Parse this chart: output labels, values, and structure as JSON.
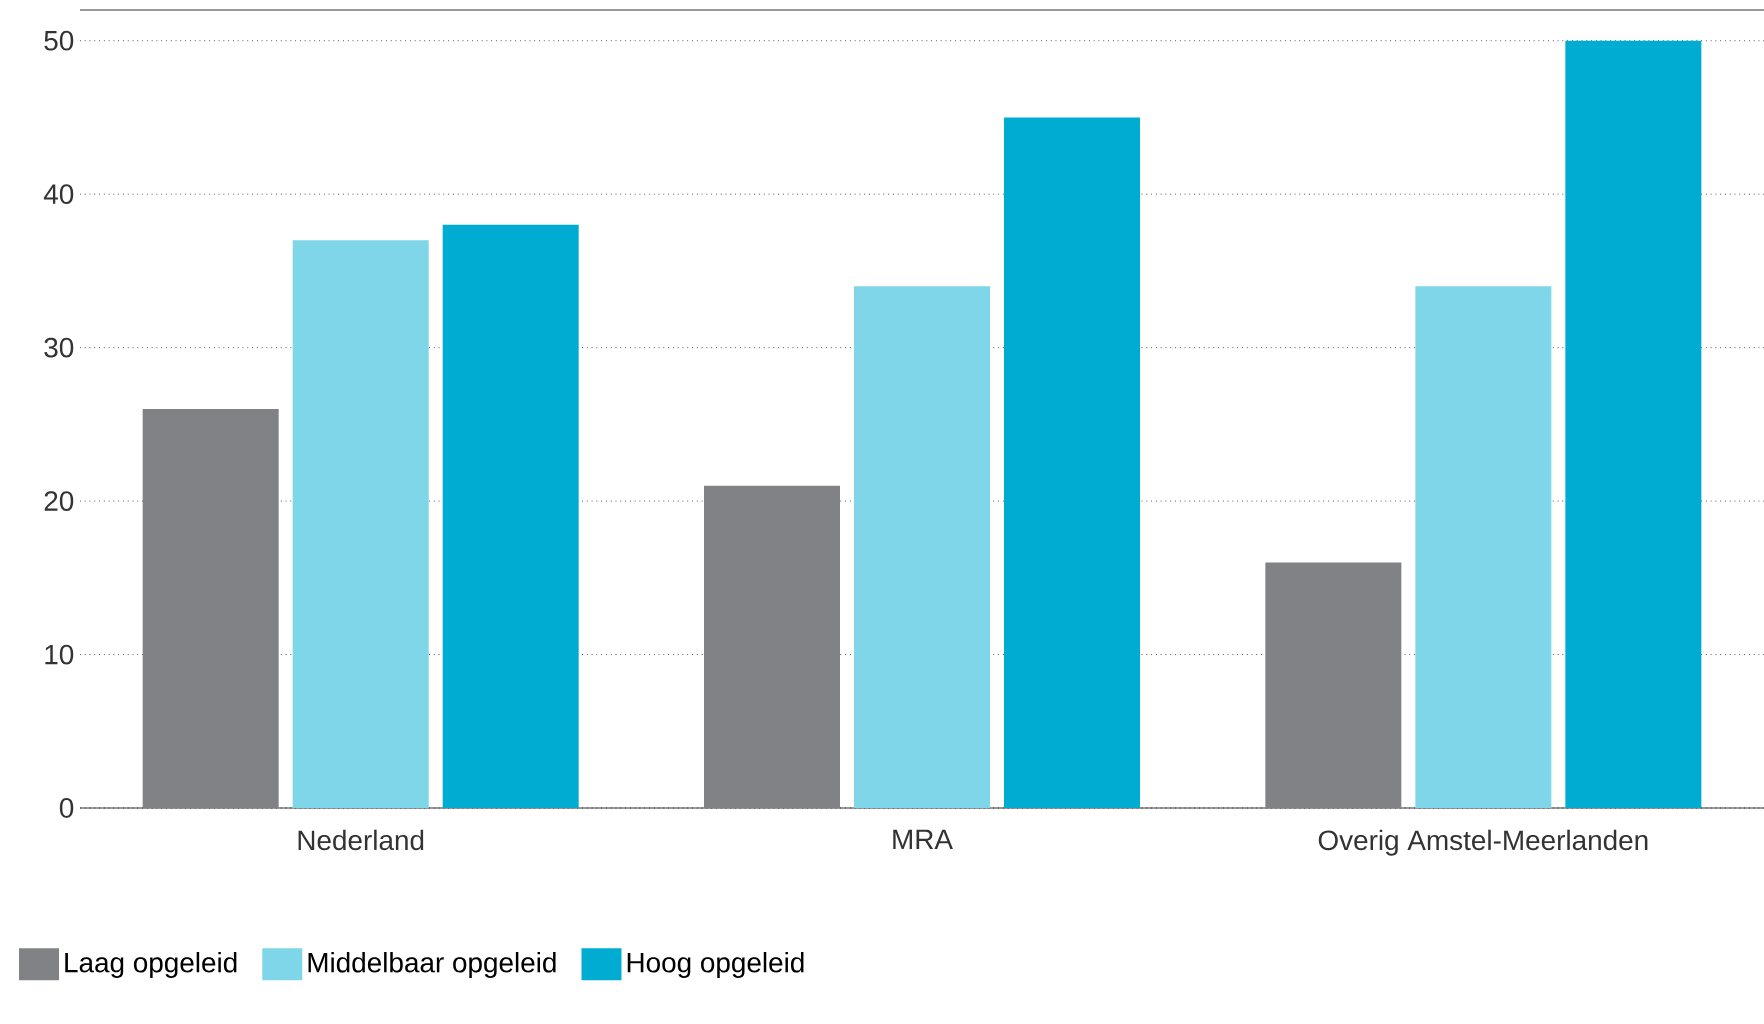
{
  "chart_data": {
    "type": "bar",
    "categories": [
      "Nederland",
      "MRA",
      "Overig Amstel-Meerlanden"
    ],
    "series": [
      {
        "name": "Laag opgeleid",
        "color": "#808285",
        "values": [
          26,
          21,
          16
        ]
      },
      {
        "name": "Middelbaar opgeleid",
        "color": "#7fd6e8",
        "values": [
          37,
          34,
          34
        ]
      },
      {
        "name": "Hoog opgeleid",
        "color": "#00acd1",
        "values": [
          38,
          45,
          50
        ]
      }
    ],
    "ylim": [
      0,
      52
    ],
    "yticks": [
      0,
      10,
      20,
      30,
      40,
      50
    ],
    "grid": "y",
    "legend": "bottom left"
  }
}
